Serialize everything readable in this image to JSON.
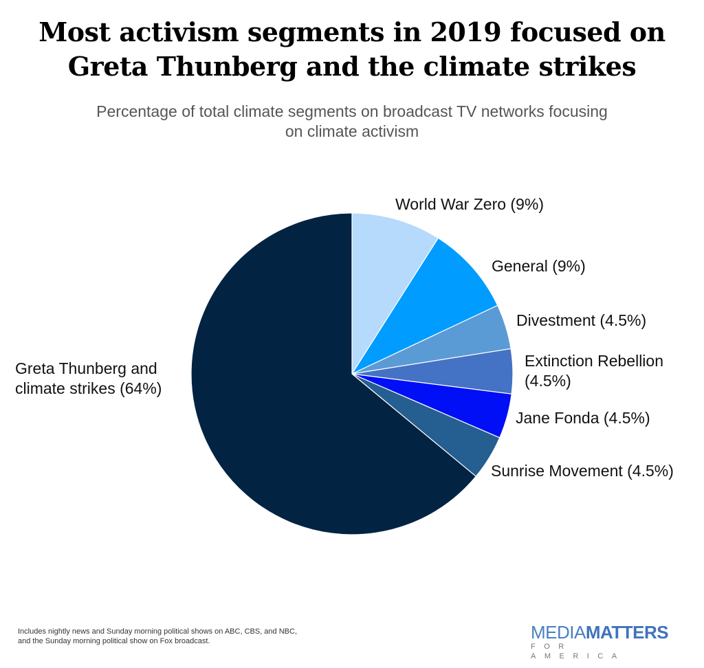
{
  "chart_data": {
    "type": "pie",
    "title": "Most activism segments in 2019 focused on Greta Thunberg and the climate strikes",
    "subtitle": "Percentage of total climate segments on broadcast TV networks focusing on climate activism",
    "start": "top",
    "direction": "clockwise",
    "slices": [
      {
        "label": "World War Zero (9%)",
        "value": 9,
        "color": "#b5dafc"
      },
      {
        "label": "General (9%)",
        "value": 9,
        "color": "#009cff"
      },
      {
        "label": "Divestment (4.5%)",
        "value": 4.5,
        "color": "#5b9bd5"
      },
      {
        "label": "Extinction Rebellion (4.5%)",
        "value": 4.5,
        "color": "#4472c4"
      },
      {
        "label": "Jane Fonda (4.5%)",
        "value": 4.5,
        "color": "#000ff5"
      },
      {
        "label": "Sunrise Movement (4.5%)",
        "value": 4.5,
        "color": "#255e91"
      },
      {
        "label": "Greta Thunberg and climate strikes (64%)",
        "value": 64,
        "color": "#022342"
      }
    ]
  },
  "labels": {
    "wwz": "World War Zero (9%)",
    "general": "General (9%)",
    "divestment": "Divestment (4.5%)",
    "extinction_1": "Extinction Rebellion",
    "extinction_2": "(4.5%)",
    "jane": "Jane Fonda (4.5%)",
    "sunrise": "Sunrise Movement (4.5%)",
    "greta_1": "Greta Thunberg and",
    "greta_2": "climate strikes (64%)"
  },
  "footnote": {
    "line1": "Includes nightly news and Sunday morning political shows on ABC, CBS, and NBC,",
    "line2": "and the Sunday morning political show on Fox broadcast."
  },
  "logo": {
    "part1": "MEDIA",
    "part2": "MATTERS",
    "sub": "FOR AMERICA"
  }
}
